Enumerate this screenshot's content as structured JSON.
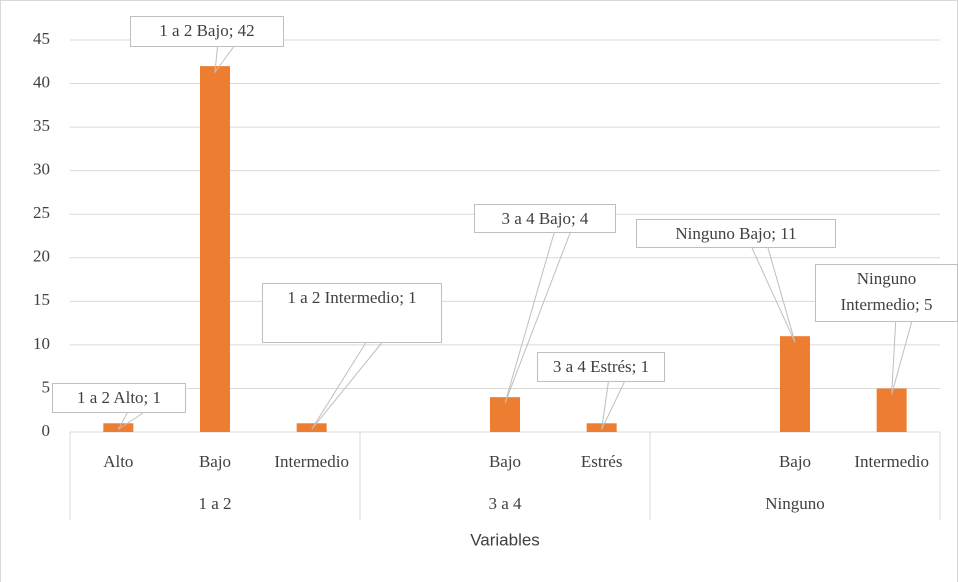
{
  "chart_data": {
    "type": "bar",
    "x_label": "Variables",
    "groups": [
      "1 a 2",
      "3 a 4",
      "Ninguno"
    ],
    "categories": [
      "Alto",
      "Bajo",
      "Intermedio",
      null,
      "Bajo",
      "Estrés",
      null,
      "Bajo",
      "Intermedio"
    ],
    "values": [
      1,
      42,
      1,
      null,
      4,
      1,
      null,
      11,
      5
    ],
    "value_labels": [
      "1 a 2 Alto; 1",
      "1 a 2 Bajo; 42",
      "1 a 2 Intermedio; 1",
      null,
      "3 a 4 Bajo; 4",
      "3 a 4 Estrés; 1",
      null,
      "Ninguno Bajo; 11",
      "Ninguno Intermedio; 5"
    ],
    "color": "#ed7d31",
    "ylim": [
      0,
      45
    ],
    "yticks": [
      0,
      5,
      10,
      15,
      20,
      25,
      30,
      35,
      40,
      45
    ],
    "grid": true
  }
}
